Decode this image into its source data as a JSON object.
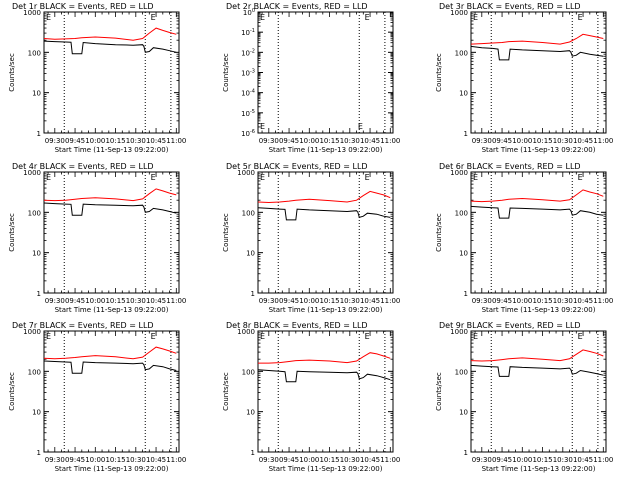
{
  "chart_data": [
    {
      "type": "line",
      "title": "Det 1r BLACK = Events, RED = LLD",
      "xlabel": "Start Time (11-Sep-13 09:22:00)",
      "ylabel": "Counts/sec",
      "yscale": "log",
      "ylim": [
        1,
        1000
      ],
      "xlim": [
        "09:22",
        "11:02"
      ],
      "x_ticks": [
        "09:30",
        "09:45",
        "10:00",
        "10:15",
        "10:30",
        "10:45",
        "11:00"
      ],
      "y_ticks": [
        "1",
        "10",
        "100",
        "1000"
      ],
      "vlines": [
        "09:37",
        "10:37",
        "10:56"
      ],
      "annotations": [
        "E",
        "E"
      ],
      "series": [
        {
          "color": "#000000",
          "x": [
            "09:22",
            "09:30",
            "09:38",
            "09:42",
            "09:43",
            "09:50",
            "09:51",
            "10:00",
            "10:15",
            "10:28",
            "10:35",
            "10:36",
            "10:37",
            "10:40",
            "10:43",
            "10:50",
            "10:55",
            "11:00"
          ],
          "values": [
            190,
            185,
            180,
            178,
            92,
            92,
            175,
            165,
            155,
            150,
            155,
            140,
            100,
            105,
            130,
            120,
            110,
            100
          ]
        },
        {
          "color": "#ff0000",
          "x": [
            "09:22",
            "09:30",
            "09:38",
            "09:45",
            "09:50",
            "10:00",
            "10:15",
            "10:28",
            "10:35",
            "10:40",
            "10:45",
            "10:50",
            "10:55",
            "11:00"
          ],
          "values": [
            220,
            210,
            215,
            220,
            230,
            240,
            225,
            200,
            220,
            300,
            400,
            350,
            310,
            280
          ]
        }
      ]
    },
    {
      "type": "line",
      "title": "Det 2r BLACK = Events, RED = LLD",
      "xlabel": "Start Time (11-Sep-13 09:22:00)",
      "ylabel": "Counts/sec",
      "yscale": "log",
      "ylim": [
        1e-06,
        1
      ],
      "xlim": [
        "09:22",
        "11:02"
      ],
      "x_ticks": [
        "09:30",
        "09:45",
        "10:00",
        "10:15",
        "10:30",
        "10:45",
        "11:00"
      ],
      "y_ticks": [
        "10^-6",
        "10^-5",
        "10^-4",
        "10^-3",
        "10^-2",
        "10^-1",
        "10^0"
      ],
      "vlines": [
        "09:37",
        "10:37",
        "10:56"
      ],
      "annotations": [
        "E",
        "E"
      ],
      "series": []
    },
    {
      "type": "line",
      "title": "Det 3r BLACK = Events, RED = LLD",
      "xlabel": "Start Time (11-Sep-13 09:22:00)",
      "ylabel": "Counts/sec",
      "yscale": "log",
      "ylim": [
        1,
        1000
      ],
      "xlim": [
        "09:22",
        "11:02"
      ],
      "x_ticks": [
        "09:30",
        "09:45",
        "10:00",
        "10:15",
        "10:30",
        "10:45",
        "11:00"
      ],
      "y_ticks": [
        "1",
        "10",
        "100",
        "1000"
      ],
      "vlines": [
        "09:37",
        "10:37",
        "10:56"
      ],
      "annotations": [
        "E",
        "E"
      ],
      "series": [
        {
          "color": "#000000",
          "x": [
            "09:22",
            "09:30",
            "09:38",
            "09:42",
            "09:43",
            "09:50",
            "09:51",
            "10:00",
            "10:15",
            "10:28",
            "10:35",
            "10:36",
            "10:37",
            "10:40",
            "10:43",
            "10:50",
            "10:55",
            "11:00"
          ],
          "values": [
            140,
            130,
            125,
            120,
            65,
            65,
            120,
            115,
            110,
            105,
            110,
            100,
            80,
            85,
            100,
            90,
            85,
            80
          ]
        },
        {
          "color": "#ff0000",
          "x": [
            "09:22",
            "09:30",
            "09:38",
            "09:45",
            "09:50",
            "10:00",
            "10:15",
            "10:28",
            "10:35",
            "10:40",
            "10:45",
            "10:50",
            "10:55",
            "11:00"
          ],
          "values": [
            160,
            165,
            170,
            175,
            185,
            190,
            175,
            160,
            180,
            220,
            280,
            260,
            240,
            220
          ]
        }
      ]
    },
    {
      "type": "line",
      "title": "Det 4r BLACK = Events, RED = LLD",
      "xlabel": "Start Time (11-Sep-13 09:22:00)",
      "ylabel": "Counts/sec",
      "yscale": "log",
      "ylim": [
        1,
        1000
      ],
      "xlim": [
        "09:22",
        "11:02"
      ],
      "x_ticks": [
        "09:30",
        "09:45",
        "10:00",
        "10:15",
        "10:30",
        "10:45",
        "11:00"
      ],
      "y_ticks": [
        "1",
        "10",
        "100",
        "1000"
      ],
      "vlines": [
        "09:37",
        "10:37",
        "10:56"
      ],
      "annotations": [
        "E",
        "E"
      ],
      "series": [
        {
          "color": "#000000",
          "x": [
            "09:22",
            "09:30",
            "09:38",
            "09:42",
            "09:43",
            "09:50",
            "09:51",
            "10:00",
            "10:15",
            "10:28",
            "10:35",
            "10:36",
            "10:37",
            "10:40",
            "10:43",
            "10:50",
            "10:55",
            "11:00"
          ],
          "values": [
            170,
            165,
            160,
            158,
            85,
            85,
            160,
            155,
            150,
            145,
            150,
            135,
            100,
            105,
            125,
            115,
            105,
            95
          ]
        },
        {
          "color": "#ff0000",
          "x": [
            "09:22",
            "09:30",
            "09:38",
            "09:45",
            "09:50",
            "10:00",
            "10:15",
            "10:28",
            "10:35",
            "10:40",
            "10:45",
            "10:50",
            "10:55",
            "11:00"
          ],
          "values": [
            200,
            195,
            200,
            210,
            220,
            230,
            215,
            195,
            215,
            290,
            380,
            340,
            300,
            270
          ]
        }
      ]
    },
    {
      "type": "line",
      "title": "Det 5r BLACK = Events, RED = LLD",
      "xlabel": "Start Time (11-Sep-13 09:22:00)",
      "ylabel": "Counts/sec",
      "yscale": "log",
      "ylim": [
        1,
        1000
      ],
      "xlim": [
        "09:22",
        "11:02"
      ],
      "x_ticks": [
        "09:30",
        "09:45",
        "10:00",
        "10:15",
        "10:30",
        "10:45",
        "11:00"
      ],
      "y_ticks": [
        "1",
        "10",
        "100",
        "1000"
      ],
      "vlines": [
        "09:37",
        "10:37",
        "10:56"
      ],
      "annotations": [
        "E",
        "E"
      ],
      "series": [
        {
          "color": "#000000",
          "x": [
            "09:22",
            "09:30",
            "09:38",
            "09:42",
            "09:43",
            "09:50",
            "09:51",
            "10:00",
            "10:15",
            "10:28",
            "10:35",
            "10:36",
            "10:37",
            "10:40",
            "10:43",
            "10:50",
            "10:55",
            "11:00"
          ],
          "values": [
            130,
            125,
            120,
            118,
            65,
            65,
            120,
            115,
            110,
            105,
            110,
            100,
            75,
            80,
            95,
            90,
            80,
            75
          ]
        },
        {
          "color": "#ff0000",
          "x": [
            "09:22",
            "09:30",
            "09:38",
            "09:45",
            "09:50",
            "10:00",
            "10:15",
            "10:28",
            "10:35",
            "10:40",
            "10:45",
            "10:50",
            "10:55",
            "11:00"
          ],
          "values": [
            180,
            175,
            180,
            190,
            200,
            210,
            195,
            180,
            200,
            260,
            330,
            300,
            270,
            230
          ]
        }
      ]
    },
    {
      "type": "line",
      "title": "Det 6r BLACK = Events, RED = LLD",
      "xlabel": "Start Time (11-Sep-13 09:22:00)",
      "ylabel": "Counts/sec",
      "yscale": "log",
      "ylim": [
        1,
        1000
      ],
      "xlim": [
        "09:22",
        "11:02"
      ],
      "x_ticks": [
        "09:30",
        "09:45",
        "10:00",
        "10:15",
        "10:30",
        "10:45",
        "11:00"
      ],
      "y_ticks": [
        "1",
        "10",
        "100",
        "1000"
      ],
      "vlines": [
        "09:37",
        "10:37",
        "10:56"
      ],
      "annotations": [
        "E",
        "E"
      ],
      "series": [
        {
          "color": "#000000",
          "x": [
            "09:22",
            "09:30",
            "09:38",
            "09:42",
            "09:43",
            "09:50",
            "09:51",
            "10:00",
            "10:15",
            "10:28",
            "10:35",
            "10:36",
            "10:37",
            "10:40",
            "10:43",
            "10:50",
            "10:55",
            "11:00"
          ],
          "values": [
            140,
            135,
            130,
            128,
            72,
            72,
            128,
            125,
            120,
            115,
            120,
            110,
            85,
            90,
            110,
            100,
            90,
            85
          ]
        },
        {
          "color": "#ff0000",
          "x": [
            "09:22",
            "09:30",
            "09:38",
            "09:45",
            "09:50",
            "10:00",
            "10:15",
            "10:28",
            "10:35",
            "10:40",
            "10:45",
            "10:50",
            "10:55",
            "11:00"
          ],
          "values": [
            190,
            185,
            190,
            200,
            210,
            220,
            205,
            190,
            205,
            270,
            360,
            320,
            290,
            250
          ]
        }
      ]
    },
    {
      "type": "line",
      "title": "Det 7r BLACK = Events, RED = LLD",
      "xlabel": "Start Time (11-Sep-13 09:22:00)",
      "ylabel": "Counts/sec",
      "yscale": "log",
      "ylim": [
        1,
        1000
      ],
      "xlim": [
        "09:22",
        "11:02"
      ],
      "x_ticks": [
        "09:30",
        "09:45",
        "10:00",
        "10:15",
        "10:30",
        "10:45",
        "11:00"
      ],
      "y_ticks": [
        "1",
        "10",
        "100",
        "1000"
      ],
      "vlines": [
        "09:37",
        "10:37",
        "10:56"
      ],
      "annotations": [
        "E",
        "E"
      ],
      "series": [
        {
          "color": "#000000",
          "x": [
            "09:22",
            "09:30",
            "09:38",
            "09:42",
            "09:43",
            "09:50",
            "09:51",
            "10:00",
            "10:15",
            "10:28",
            "10:35",
            "10:36",
            "10:37",
            "10:40",
            "10:43",
            "10:50",
            "10:55",
            "11:00"
          ],
          "values": [
            180,
            175,
            170,
            168,
            90,
            90,
            170,
            165,
            160,
            155,
            160,
            145,
            110,
            115,
            140,
            130,
            115,
            105
          ]
        },
        {
          "color": "#ff0000",
          "x": [
            "09:22",
            "09:30",
            "09:38",
            "09:45",
            "09:50",
            "10:00",
            "10:15",
            "10:28",
            "10:35",
            "10:40",
            "10:45",
            "10:50",
            "10:55",
            "11:00"
          ],
          "values": [
            210,
            205,
            210,
            220,
            230,
            245,
            230,
            205,
            225,
            300,
            400,
            360,
            320,
            280
          ]
        }
      ]
    },
    {
      "type": "line",
      "title": "Det 8r BLACK = Events, RED = LLD",
      "xlabel": "Start Time (11-Sep-13 09:22:00)",
      "ylabel": "Counts/sec",
      "yscale": "log",
      "ylim": [
        1,
        1000
      ],
      "xlim": [
        "09:22",
        "11:02"
      ],
      "x_ticks": [
        "09:30",
        "09:45",
        "10:00",
        "10:15",
        "10:30",
        "10:45",
        "11:00"
      ],
      "y_ticks": [
        "1",
        "10",
        "100",
        "1000"
      ],
      "vlines": [
        "09:37",
        "10:37",
        "10:56"
      ],
      "annotations": [
        "E",
        "E"
      ],
      "series": [
        {
          "color": "#000000",
          "x": [
            "09:22",
            "09:30",
            "09:38",
            "09:42",
            "09:43",
            "09:50",
            "09:51",
            "10:00",
            "10:15",
            "10:28",
            "10:35",
            "10:36",
            "10:37",
            "10:40",
            "10:43",
            "10:50",
            "10:55",
            "11:00"
          ],
          "values": [
            110,
            105,
            100,
            98,
            55,
            55,
            100,
            98,
            95,
            92,
            95,
            88,
            65,
            70,
            85,
            78,
            70,
            62
          ]
        },
        {
          "color": "#ff0000",
          "x": [
            "09:22",
            "09:30",
            "09:38",
            "09:45",
            "09:50",
            "10:00",
            "10:15",
            "10:28",
            "10:35",
            "10:40",
            "10:45",
            "10:50",
            "10:55",
            "11:00"
          ],
          "values": [
            160,
            160,
            165,
            175,
            185,
            190,
            180,
            165,
            180,
            230,
            290,
            270,
            240,
            210
          ]
        }
      ]
    },
    {
      "type": "line",
      "title": "Det 9r BLACK = Events, RED = LLD",
      "xlabel": "Start Time (11-Sep-13 09:22:00)",
      "ylabel": "Counts/sec",
      "yscale": "log",
      "ylim": [
        1,
        1000
      ],
      "xlim": [
        "09:22",
        "11:02"
      ],
      "x_ticks": [
        "09:30",
        "09:45",
        "10:00",
        "10:15",
        "10:30",
        "10:45",
        "11:00"
      ],
      "y_ticks": [
        "1",
        "10",
        "100",
        "1000"
      ],
      "vlines": [
        "09:37",
        "10:37",
        "10:56"
      ],
      "annotations": [
        "E",
        "E"
      ],
      "series": [
        {
          "color": "#000000",
          "x": [
            "09:22",
            "09:30",
            "09:38",
            "09:42",
            "09:43",
            "09:50",
            "09:51",
            "10:00",
            "10:15",
            "10:28",
            "10:35",
            "10:36",
            "10:37",
            "10:40",
            "10:43",
            "10:50",
            "10:55",
            "11:00"
          ],
          "values": [
            140,
            135,
            130,
            128,
            75,
            75,
            130,
            125,
            120,
            115,
            120,
            110,
            85,
            90,
            105,
            95,
            88,
            80
          ]
        },
        {
          "color": "#ff0000",
          "x": [
            "09:22",
            "09:30",
            "09:38",
            "09:45",
            "09:50",
            "10:00",
            "10:15",
            "10:28",
            "10:35",
            "10:40",
            "10:45",
            "10:50",
            "10:55",
            "11:00"
          ],
          "values": [
            185,
            180,
            185,
            195,
            205,
            215,
            200,
            185,
            205,
            265,
            340,
            310,
            280,
            240
          ]
        }
      ]
    }
  ]
}
